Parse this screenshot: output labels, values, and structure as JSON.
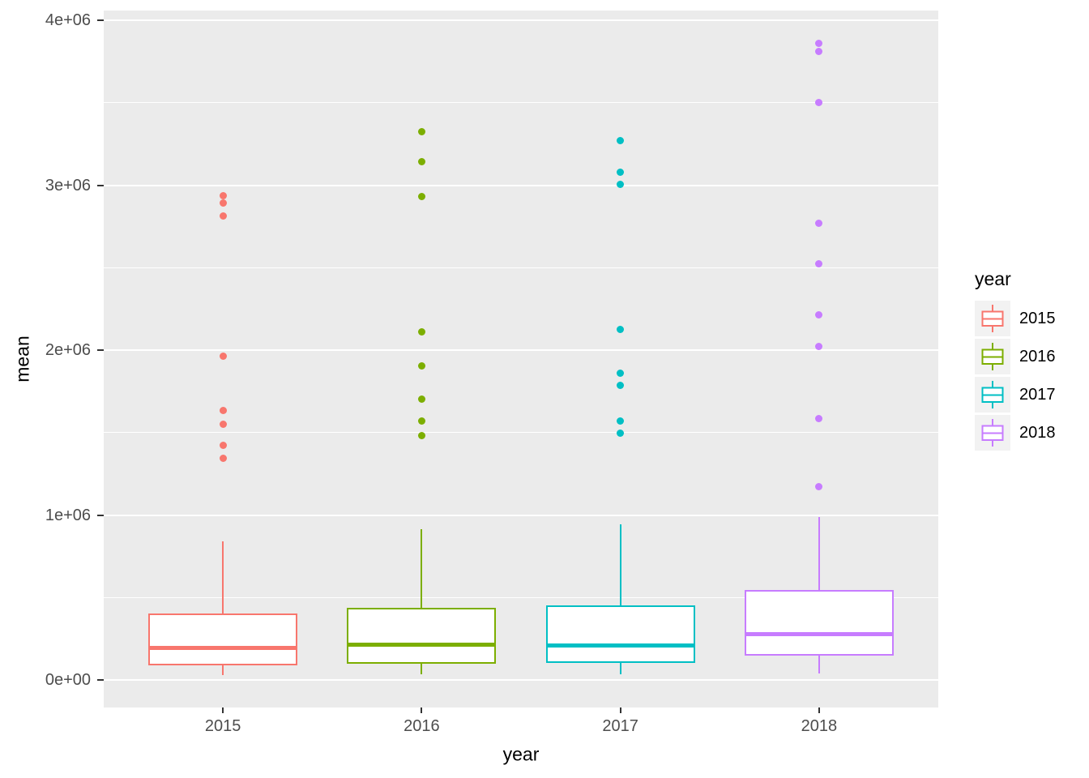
{
  "chart_data": {
    "type": "boxplot",
    "title": "",
    "xlabel": "year",
    "ylabel": "mean",
    "categories": [
      "2015",
      "2016",
      "2017",
      "2018"
    ],
    "ylim": [
      -167000,
      4059000
    ],
    "y_major_ticks": [
      {
        "value": 0,
        "label": "0e+00"
      },
      {
        "value": 1000000,
        "label": "1e+06"
      },
      {
        "value": 2000000,
        "label": "2e+06"
      },
      {
        "value": 3000000,
        "label": "3e+06"
      },
      {
        "value": 4000000,
        "label": "4e+06"
      }
    ],
    "y_minor_ticks": [
      500000,
      1500000,
      2500000,
      3500000
    ],
    "grid": true,
    "legend": {
      "title": "year",
      "position": "right",
      "entries": [
        {
          "label": "2015",
          "color": "#F8766D"
        },
        {
          "label": "2016",
          "color": "#7CAE00"
        },
        {
          "label": "2017",
          "color": "#00BFC4"
        },
        {
          "label": "2018",
          "color": "#C77CFF"
        }
      ]
    },
    "series": [
      {
        "name": "2015",
        "color": "#F8766D",
        "lower_whisker": 30000,
        "q1": 88000,
        "median": 195000,
        "q3": 403000,
        "upper_whisker": 840000,
        "outliers": [
          1342000,
          1425000,
          1548000,
          1636000,
          1961000,
          2811000,
          2894000,
          2934000
        ]
      },
      {
        "name": "2016",
        "color": "#7CAE00",
        "lower_whisker": 34000,
        "q1": 98000,
        "median": 216000,
        "q3": 437000,
        "upper_whisker": 914000,
        "outliers": [
          1484000,
          1568000,
          1705000,
          1902000,
          2113000,
          2929000,
          3145000,
          3322000
        ]
      },
      {
        "name": "2017",
        "color": "#00BFC4",
        "lower_whisker": 34000,
        "q1": 103000,
        "median": 211000,
        "q3": 452000,
        "upper_whisker": 943000,
        "outliers": [
          1494000,
          1568000,
          1784000,
          1862000,
          2123000,
          3007000,
          3081000,
          3268000
        ]
      },
      {
        "name": "2018",
        "color": "#C77CFF",
        "lower_whisker": 39000,
        "q1": 147000,
        "median": 280000,
        "q3": 546000,
        "upper_whisker": 988000,
        "outliers": [
          1170000,
          1587000,
          2020000,
          2216000,
          2521000,
          2767000,
          3499000,
          3813000,
          3862000
        ]
      }
    ],
    "colors": {
      "panel_bg": "#EBEBEB",
      "grid": "#FFFFFF",
      "legend_key_bg": "#F2F2F2",
      "axis_text": "#4D4D4D",
      "tick_mark": "#333333"
    }
  }
}
